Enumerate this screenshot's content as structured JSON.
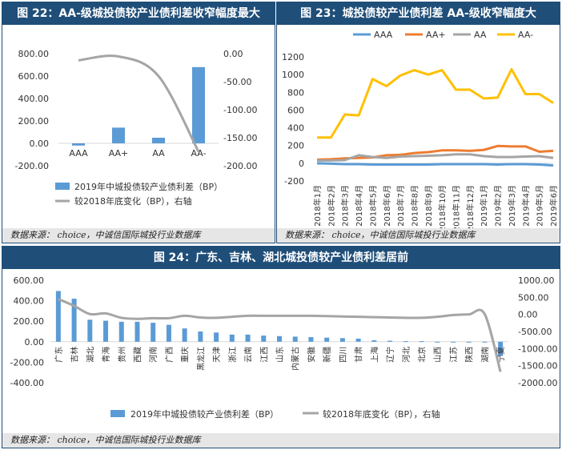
{
  "source_text": "数据来源： choice，中诚信国际城投行业数据库",
  "chart_data": [
    {
      "id": "fig22",
      "title": "图 22：AA-级城投债较产业债利差收窄幅度最大",
      "type": "bar",
      "categories": [
        "AAA",
        "AA+",
        "AA",
        "AA-"
      ],
      "series": [
        {
          "name": "2019年中城投债较产业债利差（BP）",
          "axis": "left",
          "kind": "bar",
          "values": [
            -20,
            140,
            50,
            680
          ]
        },
        {
          "name": "较2018年底变化（BP），右轴",
          "axis": "right",
          "kind": "line",
          "values": [
            -12,
            -5,
            -40,
            -175
          ]
        }
      ],
      "ylim_left": [
        -200,
        800
      ],
      "ylim_right": [
        -200,
        0
      ],
      "yticks_left": [
        "800.00",
        "600.00",
        "400.00",
        "200.00",
        "0.00",
        "-200.00"
      ],
      "yticks_right": [
        "0.00",
        "-50.00",
        "-100.00",
        "-150.00",
        "-200.00"
      ],
      "colors": {
        "bar": "#5b9bd5",
        "line": "#a5a5a5"
      }
    },
    {
      "id": "fig23",
      "title": "图 23：城投债较产业债利差 AA-级收窄幅度大",
      "type": "line",
      "categories": [
        "2018年1月",
        "2018年2月",
        "2018年3月",
        "2018年4月",
        "2018年5月",
        "2018年6月",
        "2018年7月",
        "2018年8月",
        "2018年9月",
        "2018年10月",
        "2018年11月",
        "2018年12月",
        "2019年1月",
        "2019年2月",
        "2019年3月",
        "2019年4月",
        "2019年5月",
        "2019年6月"
      ],
      "series": [
        {
          "name": "AAA",
          "color": "#5b9bd5",
          "values": [
            0,
            -5,
            -10,
            -10,
            -15,
            -15,
            -15,
            -15,
            -15,
            -10,
            -10,
            -10,
            -10,
            -15,
            -10,
            -10,
            -15,
            -25
          ]
        },
        {
          "name": "AA+",
          "color": "#ed7d31",
          "values": [
            40,
            45,
            55,
            60,
            65,
            90,
            95,
            115,
            125,
            145,
            145,
            140,
            150,
            195,
            190,
            190,
            130,
            140
          ]
        },
        {
          "name": "AA",
          "color": "#a5a5a5",
          "values": [
            30,
            30,
            35,
            90,
            70,
            60,
            75,
            80,
            85,
            90,
            100,
            100,
            80,
            70,
            70,
            75,
            80,
            60
          ]
        },
        {
          "name": "AA-",
          "color": "#ffc000",
          "values": [
            290,
            290,
            550,
            540,
            950,
            870,
            990,
            1050,
            1000,
            1050,
            830,
            830,
            730,
            740,
            1060,
            780,
            780,
            680
          ]
        }
      ],
      "ylim": [
        -200,
        1200
      ],
      "yticks": [
        "1200",
        "1000",
        "800",
        "600",
        "400",
        "200",
        "0",
        "-200"
      ]
    },
    {
      "id": "fig24",
      "title": "图 24：广东、吉林、湖北城投债较产业债利差居前",
      "type": "bar",
      "categories": [
        "广东",
        "吉林",
        "湖北",
        "青海",
        "贵州",
        "西藏",
        "河南",
        "广西",
        "重庆",
        "黑龙江",
        "天津",
        "浙江",
        "云南",
        "江西",
        "山东",
        "内蒙古",
        "安徽",
        "新疆",
        "四川",
        "甘肃",
        "上海",
        "辽宁",
        "河北",
        "北京",
        "山西",
        "江苏",
        "陕西",
        "湖南",
        "宁夏"
      ],
      "series": [
        {
          "name": "2019年中城投债较产业债利差（BP）",
          "axis": "left",
          "kind": "bar",
          "values": [
            495,
            420,
            215,
            205,
            195,
            195,
            185,
            165,
            130,
            100,
            90,
            70,
            70,
            60,
            55,
            50,
            45,
            40,
            35,
            30,
            15,
            10,
            5,
            5,
            0,
            0,
            -5,
            -5,
            -140
          ]
        },
        {
          "name": "较2018年底变化（BP），右轴",
          "axis": "right",
          "kind": "line",
          "values": [
            450,
            250,
            10,
            30,
            -100,
            -130,
            -110,
            -110,
            -40,
            -90,
            -100,
            -70,
            -40,
            -40,
            -40,
            -40,
            -40,
            -50,
            -60,
            -70,
            -80,
            -90,
            -100,
            -100,
            -70,
            -20,
            0,
            10,
            -1680
          ]
        }
      ],
      "ylim_left": [
        -400,
        600
      ],
      "ylim_right": [
        -2000,
        1000
      ],
      "yticks_left": [
        "600.00",
        "400.00",
        "200.00",
        "0.00",
        "-200.00",
        "-400.00"
      ],
      "yticks_right": [
        "1000.00",
        "500.00",
        "0.00",
        "-500.00",
        "-1000.00",
        "-1500.00",
        "-2000.00"
      ],
      "colors": {
        "bar": "#5b9bd5",
        "line": "#a5a5a5"
      }
    }
  ]
}
